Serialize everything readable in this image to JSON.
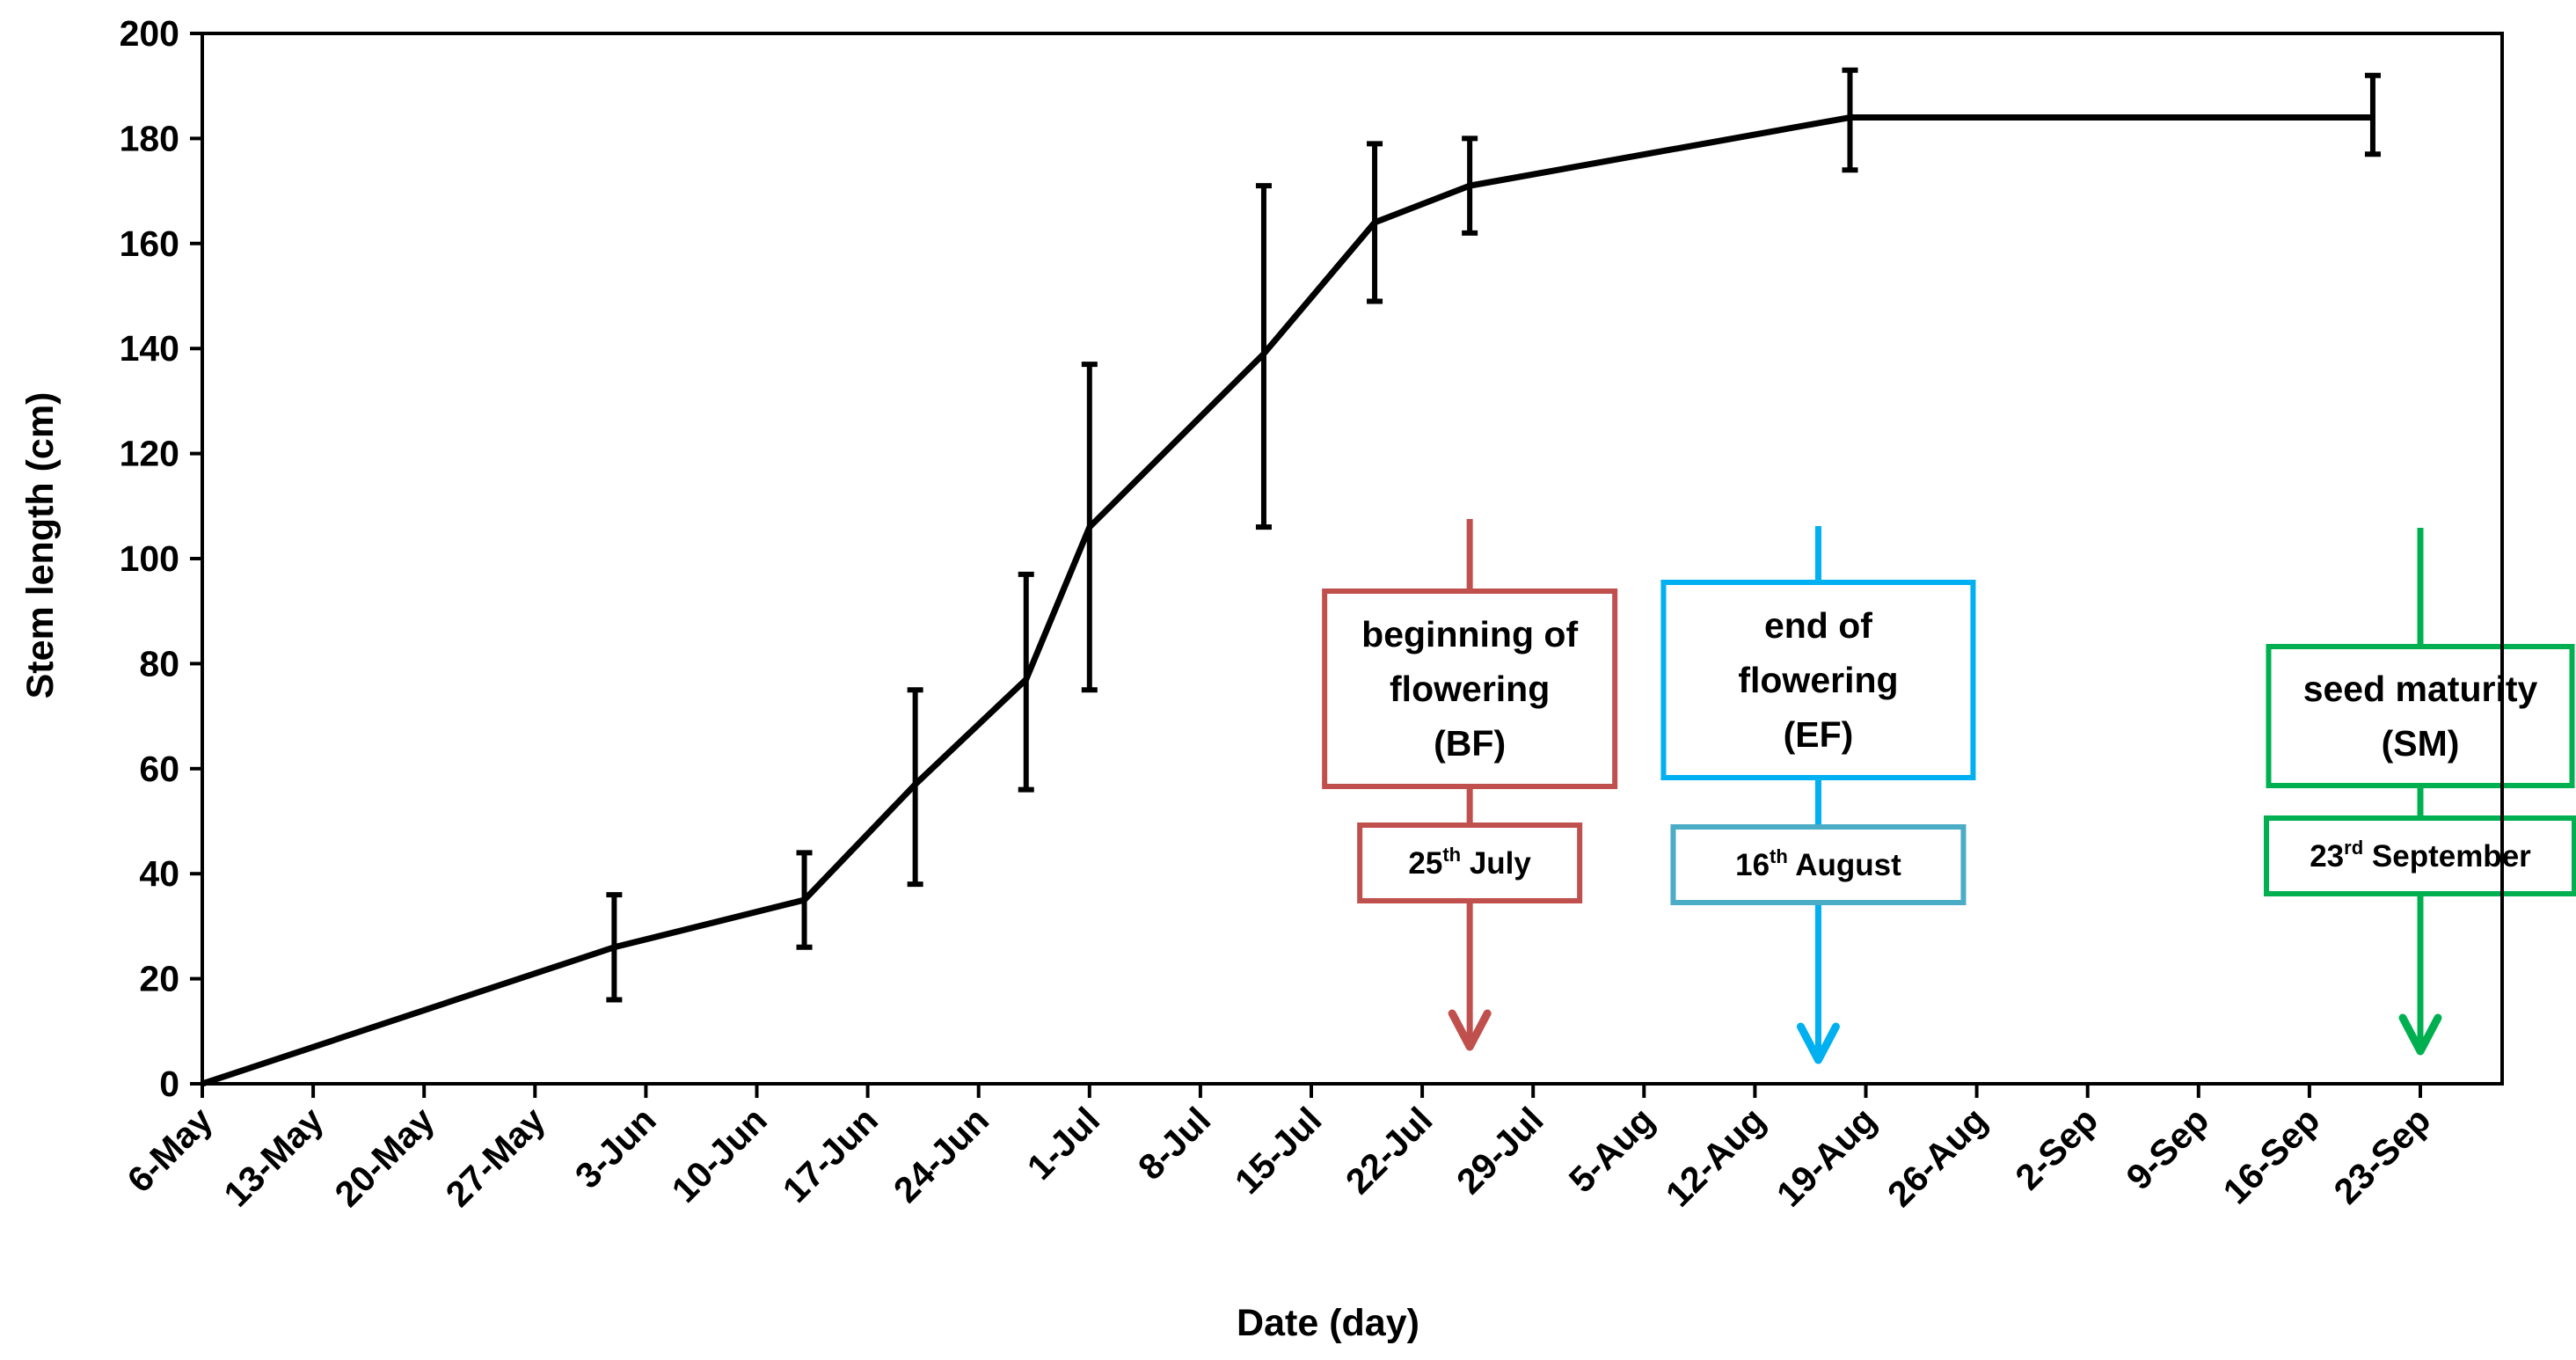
{
  "chart_data": {
    "type": "line",
    "xlabel": "Date (day)",
    "ylabel": "Stem length (cm)",
    "ylim": [
      0,
      200
    ],
    "yticks": [
      0,
      20,
      40,
      60,
      80,
      100,
      120,
      140,
      160,
      180,
      200
    ],
    "x_tick_labels": [
      "6-May",
      "13-May",
      "20-May",
      "27-May",
      "3-Jun",
      "10-Jun",
      "17-Jun",
      "24-Jun",
      "1-Jul",
      "8-Jul",
      "15-Jul",
      "22-Jul",
      "29-Jul",
      "5-Aug",
      "12-Aug",
      "19-Aug",
      "26-Aug",
      "2-Sep",
      "9-Sep",
      "16-Sep",
      "23-Sep"
    ],
    "x_unit": "days since 6-May",
    "xlim": [
      0,
      147
    ],
    "series": [
      {
        "name": "Stem length",
        "color": "#000000",
        "points": [
          {
            "x": 0,
            "y": 0,
            "err": null
          },
          {
            "x": 26,
            "y": 26,
            "err_low": 16,
            "err_high": 36
          },
          {
            "x": 38,
            "y": 35,
            "err_low": 26,
            "err_high": 44
          },
          {
            "x": 45,
            "y": 57,
            "err_low": 38,
            "err_high": 75
          },
          {
            "x": 52,
            "y": 77,
            "err_low": 56,
            "err_high": 97
          },
          {
            "x": 56,
            "y": 106,
            "err_low": 75,
            "err_high": 137
          },
          {
            "x": 67,
            "y": 139,
            "err_low": 106,
            "err_high": 171
          },
          {
            "x": 74,
            "y": 164,
            "err_low": 149,
            "err_high": 179
          },
          {
            "x": 80,
            "y": 171,
            "err_low": 162,
            "err_high": 180
          },
          {
            "x": 104,
            "y": 184,
            "err_low": 174,
            "err_high": 193
          },
          {
            "x": 137,
            "y": 184,
            "err_low": 177,
            "err_high": 192
          }
        ]
      }
    ],
    "annotations": [
      {
        "id": "bf",
        "label_lines": [
          "beginning of",
          "flowering",
          "(BF)"
        ],
        "date_day": "25",
        "date_sup": "th",
        "date_rest": " July",
        "x": 80,
        "color": "#c0504d",
        "date_color": "#c0504d"
      },
      {
        "id": "ef",
        "label_lines": [
          "end of",
          "flowering",
          "(EF)"
        ],
        "date_day": "16",
        "date_sup": "th",
        "date_rest": " August",
        "x": 102,
        "color": "#00b0f0",
        "date_color": "#4bacc6"
      },
      {
        "id": "sm",
        "label_lines": [
          "seed maturity",
          "(SM)"
        ],
        "date_day": "23",
        "date_sup": "rd",
        "date_rest": " September",
        "x": 140,
        "color": "#00b050",
        "date_color": "#00b050"
      }
    ]
  }
}
